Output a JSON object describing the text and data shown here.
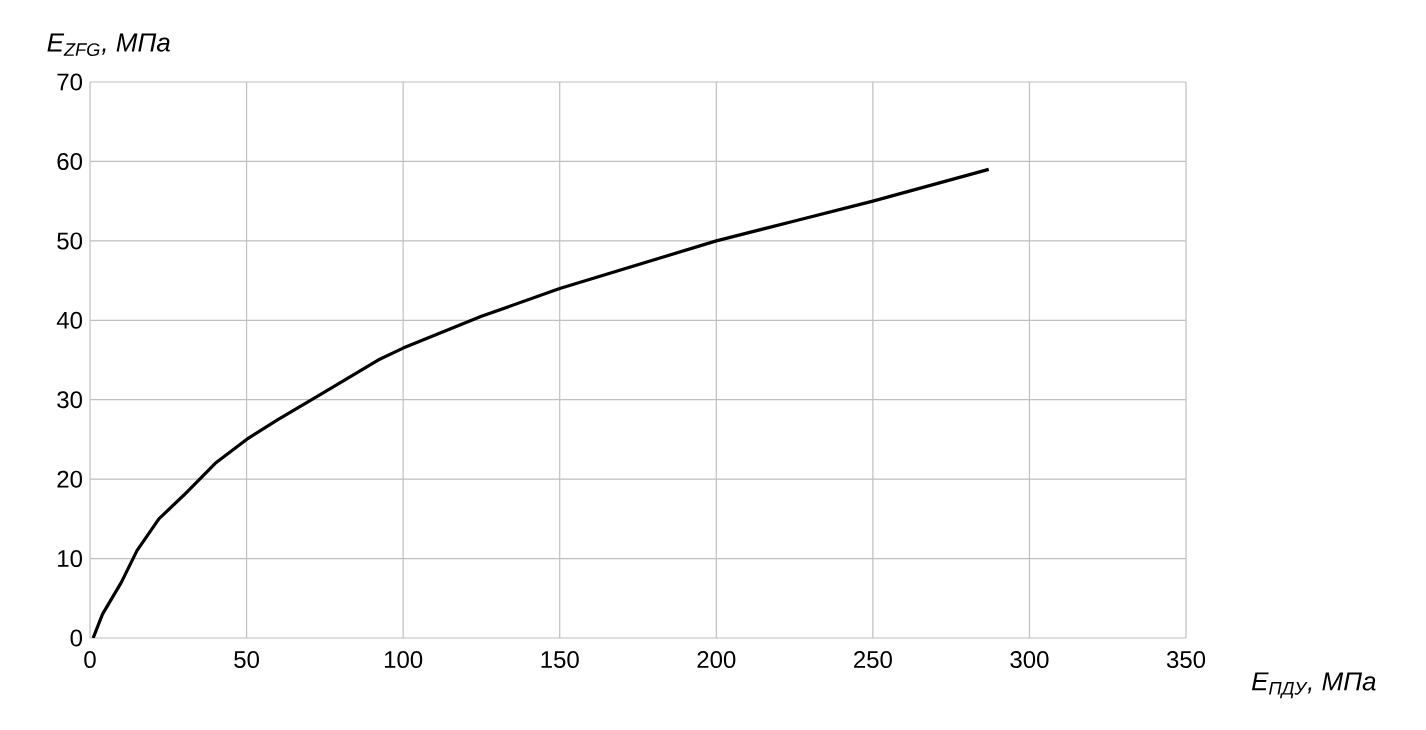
{
  "chart_data": {
    "type": "line",
    "xlabel": "*E$_{ПДУ}$, МПа*",
    "ylabel": "*E$_{ZFG}$, МПа*",
    "xlim": [
      0,
      350
    ],
    "ylim": [
      0,
      70
    ],
    "xticks": [
      0,
      50,
      100,
      150,
      200,
      250,
      300,
      350
    ],
    "yticks": [
      0,
      10,
      20,
      30,
      40,
      50,
      60,
      70
    ],
    "grid": true,
    "series": [
      {
        "color": "#000000",
        "x": [
          1,
          4,
          10,
          15,
          22,
          30,
          40,
          50,
          60,
          75,
          92,
          100,
          125,
          150,
          175,
          200,
          225,
          250,
          287
        ],
        "values": [
          0,
          3,
          7,
          11,
          15,
          18,
          22,
          25,
          27.5,
          31,
          35,
          36.5,
          40.5,
          44,
          47,
          50,
          52.5,
          55,
          59
        ]
      }
    ]
  }
}
